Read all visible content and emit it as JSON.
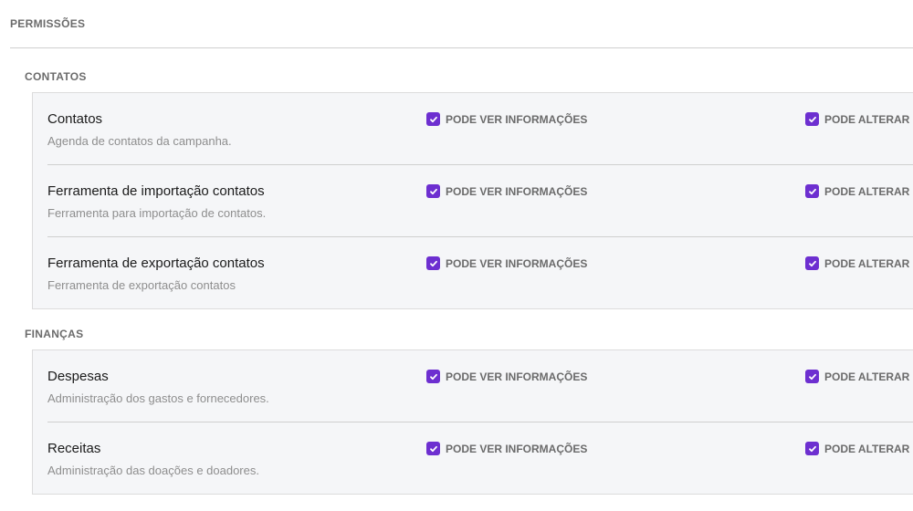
{
  "title": "PERMISSÕES",
  "accent": "#6d2fd0",
  "groups": [
    {
      "title": "CONTATOS",
      "items": [
        {
          "name": "Contatos",
          "desc": "Agenda de contatos da campanha.",
          "view": true,
          "edit": true
        },
        {
          "name": "Ferramenta de importação contatos",
          "desc": "Ferramenta para importação de contatos.",
          "view": true,
          "edit": true
        },
        {
          "name": "Ferramenta de exportação contatos",
          "desc": "Ferramenta de exportação contatos",
          "view": true,
          "edit": true
        }
      ]
    },
    {
      "title": "FINANÇAS",
      "items": [
        {
          "name": "Despesas",
          "desc": "Administração dos gastos e fornecedores.",
          "view": true,
          "edit": true
        },
        {
          "name": "Receitas",
          "desc": "Administração das doações e doadores.",
          "view": true,
          "edit": true
        }
      ]
    }
  ],
  "labels": {
    "view": "PODE VER INFORMAÇÕES",
    "edit": "PODE ALTERAR"
  }
}
